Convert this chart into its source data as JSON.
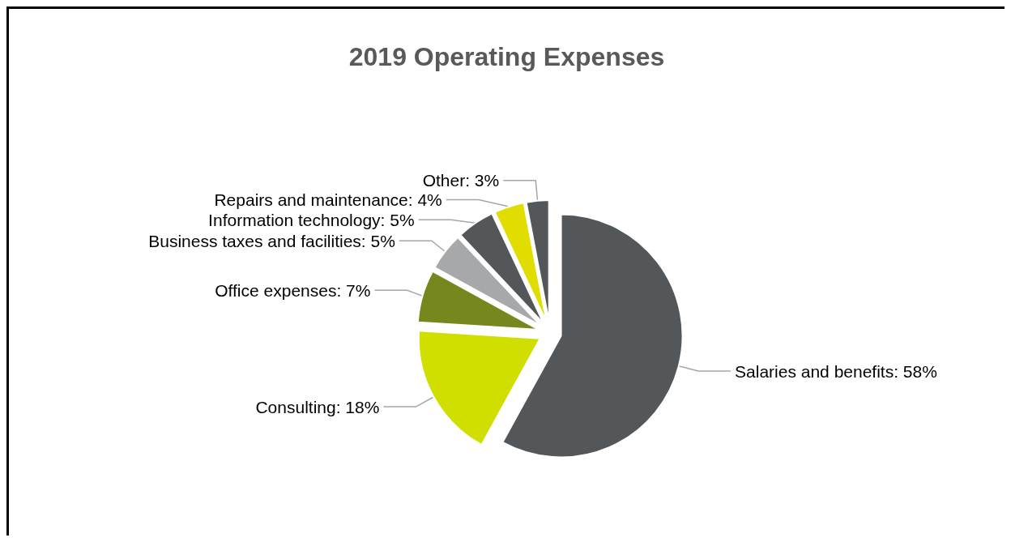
{
  "chart_data": {
    "type": "pie",
    "title": "2019 Operating Expenses",
    "categories": [
      "Salaries and benefits",
      "Consulting",
      "Office expenses",
      "Business taxes and facilities",
      "Information technology",
      "Repairs and maintenance",
      "Other"
    ],
    "values": [
      58,
      18,
      7,
      5,
      5,
      4,
      3
    ],
    "colors": [
      "#53575a",
      "#d0df00",
      "#76881d",
      "#a7a8a9",
      "#53575a",
      "#e2dd00",
      "#53575a"
    ],
    "value_labels": [
      ": 58%",
      ": 18%",
      ": 7%",
      ": 5%",
      ": 5%",
      ": 4%",
      ": 3%"
    ],
    "legend": false
  }
}
